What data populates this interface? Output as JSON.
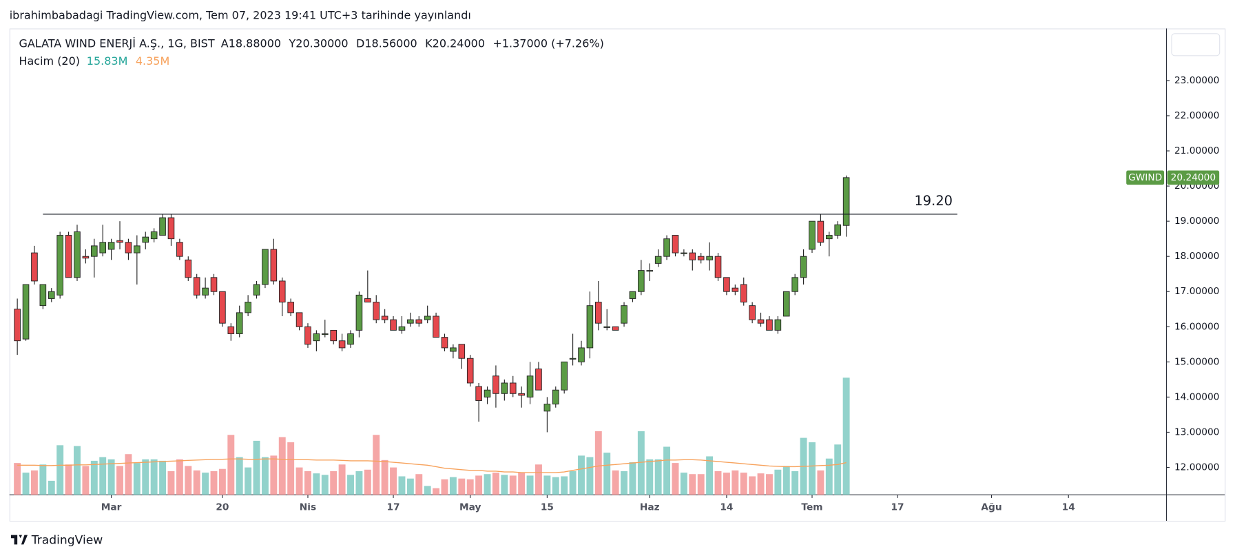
{
  "publisher": "ibrahimbabadagi TradingView.com, Tem 07, 2023 19:41 UTC+3 tarihinde yayınlandı",
  "footer": "TradingView",
  "chart_data": {
    "type": "candlestick",
    "symbol_title": "GALATA WIND ENERJİ A.Ş., 1G, BIST",
    "ohlc_legend": [
      {
        "label": "A",
        "value": "18.88000"
      },
      {
        "label": "Y",
        "value": "20.30000"
      },
      {
        "label": "D",
        "value": "18.56000"
      },
      {
        "label": "K",
        "value": "20.24000"
      }
    ],
    "change": "+1.37000 (+7.26%)",
    "volume_legend": {
      "label": "Hacim (20)",
      "volume": "15.83M",
      "ma": "4.35M"
    },
    "last_price_tag": {
      "symbol": "GWIND",
      "value": "20.24000"
    },
    "annotation": {
      "label": "19.20",
      "value": 19.2,
      "from": 3,
      "to": 110
    },
    "up_color": "#5b9b45",
    "down_color": "#e5484d",
    "volume_up_color": "#92d2cb",
    "volume_down_color": "#f5a6a6",
    "volume_ma_color": "#f7a25c",
    "open": [
      16.5,
      15.65,
      18.1,
      16.6,
      16.8,
      16.9,
      18.6,
      17.4,
      18.0,
      18.0,
      18.1,
      18.2,
      18.45,
      18.4,
      18.1,
      18.4,
      18.5,
      18.6,
      19.1,
      18.4,
      17.9,
      17.4,
      16.9,
      17.4,
      17.0,
      16.0,
      15.8,
      16.4,
      16.9,
      17.2,
      18.2,
      17.3,
      16.7,
      16.4,
      16.0,
      15.6,
      15.8,
      15.9,
      15.6,
      15.5,
      15.9,
      16.8,
      16.7,
      16.3,
      16.2,
      15.9,
      16.1,
      16.2,
      16.2,
      16.3,
      15.7,
      15.3,
      15.5,
      15.1,
      14.3,
      14.0,
      14.6,
      14.1,
      14.4,
      14.1,
      14.0,
      14.8,
      13.6,
      13.8,
      14.2,
      15.1,
      15.0,
      15.4,
      16.7,
      16.0,
      16.0,
      16.1,
      16.8,
      17.0,
      17.6,
      17.8,
      18.0,
      18.6,
      18.1,
      18.1,
      18.0,
      17.9,
      18.0,
      17.4,
      17.1,
      17.2,
      16.6,
      16.2,
      16.2,
      15.9,
      16.3,
      17.0,
      17.4,
      18.2,
      19.0,
      18.5,
      18.6,
      18.88
    ],
    "high": [
      16.8,
      17.2,
      18.3,
      17.2,
      17.1,
      18.7,
      18.7,
      18.9,
      18.2,
      18.5,
      18.9,
      18.5,
      19.0,
      18.5,
      18.6,
      18.7,
      18.8,
      19.2,
      19.2,
      18.5,
      18.0,
      17.5,
      17.4,
      17.5,
      17.0,
      16.1,
      16.6,
      16.9,
      17.3,
      18.2,
      18.5,
      17.4,
      16.8,
      16.4,
      16.1,
      15.9,
      16.2,
      15.9,
      15.8,
      15.9,
      17.0,
      17.6,
      16.9,
      16.5,
      16.3,
      16.3,
      16.4,
      16.3,
      16.6,
      16.4,
      15.8,
      15.5,
      15.5,
      15.2,
      14.4,
      14.3,
      14.9,
      14.5,
      14.6,
      14.3,
      15.0,
      15.0,
      14.0,
      14.3,
      15.0,
      15.8,
      15.6,
      17.0,
      17.3,
      16.5,
      16.0,
      16.7,
      17.0,
      17.9,
      17.8,
      18.2,
      18.6,
      18.6,
      18.2,
      18.2,
      18.1,
      18.4,
      18.1,
      17.4,
      17.2,
      17.4,
      16.7,
      16.4,
      16.3,
      16.3,
      17.0,
      17.5,
      18.2,
      19.0,
      19.2,
      18.7,
      19.0,
      20.3
    ],
    "low": [
      15.2,
      15.6,
      17.2,
      16.5,
      16.7,
      16.8,
      17.4,
      17.3,
      17.8,
      17.4,
      18.0,
      17.9,
      18.2,
      17.9,
      17.2,
      18.2,
      18.4,
      18.6,
      18.3,
      17.9,
      17.3,
      16.8,
      16.8,
      16.9,
      16.0,
      15.6,
      15.7,
      16.3,
      16.8,
      17.1,
      17.2,
      16.3,
      16.3,
      15.9,
      15.4,
      15.3,
      15.7,
      15.5,
      15.3,
      15.4,
      15.7,
      16.7,
      16.1,
      16.1,
      15.9,
      15.8,
      16.0,
      16.0,
      16.1,
      15.7,
      15.3,
      15.1,
      14.8,
      14.3,
      13.3,
      13.8,
      13.7,
      13.9,
      14.0,
      13.7,
      13.8,
      14.2,
      13.0,
      13.7,
      14.1,
      14.9,
      14.9,
      15.1,
      15.9,
      15.9,
      15.9,
      16.0,
      16.7,
      16.9,
      17.3,
      17.7,
      17.9,
      18.0,
      18.0,
      17.6,
      17.8,
      17.6,
      17.3,
      16.9,
      16.9,
      16.6,
      16.1,
      16.0,
      15.9,
      15.8,
      16.3,
      16.9,
      17.2,
      18.1,
      18.3,
      18.0,
      18.5,
      18.56
    ],
    "close": [
      15.6,
      17.2,
      17.3,
      17.2,
      17.0,
      18.6,
      17.4,
      18.7,
      17.95,
      18.3,
      18.4,
      18.4,
      18.4,
      18.1,
      18.3,
      18.55,
      18.7,
      19.1,
      18.5,
      18.0,
      17.4,
      16.9,
      17.1,
      17.0,
      16.1,
      15.8,
      16.4,
      16.7,
      17.2,
      18.2,
      17.3,
      16.7,
      16.4,
      16.0,
      15.5,
      15.8,
      15.8,
      15.6,
      15.4,
      15.8,
      16.9,
      16.7,
      16.2,
      16.2,
      15.9,
      16.0,
      16.2,
      16.1,
      16.3,
      15.7,
      15.4,
      15.4,
      15.1,
      14.4,
      13.9,
      14.2,
      14.1,
      14.4,
      14.1,
      14.05,
      14.6,
      14.2,
      13.8,
      14.2,
      15.0,
      15.1,
      15.4,
      16.6,
      16.1,
      16.0,
      15.9,
      16.6,
      17.0,
      17.6,
      17.6,
      18.0,
      18.5,
      18.1,
      18.1,
      17.9,
      17.9,
      18.0,
      17.4,
      17.0,
      17.0,
      16.7,
      16.2,
      16.1,
      15.9,
      16.2,
      17.0,
      17.4,
      18.0,
      19.0,
      18.4,
      18.6,
      18.9,
      20.24
    ],
    "volume": [
      4.3,
      3.0,
      3.3,
      4.1,
      1.9,
      6.7,
      4.1,
      6.6,
      3.9,
      4.6,
      5.1,
      4.8,
      3.9,
      5.5,
      4.3,
      4.8,
      4.8,
      4.6,
      3.2,
      4.8,
      3.9,
      3.3,
      3.0,
      3.2,
      3.5,
      8.1,
      5.1,
      3.7,
      7.3,
      5.1,
      5.3,
      7.8,
      7.1,
      3.7,
      3.2,
      2.9,
      2.7,
      3.2,
      4.1,
      2.7,
      3.2,
      3.4,
      8.1,
      4.7,
      3.7,
      2.5,
      2.2,
      2.8,
      1.2,
      0.9,
      2.1,
      2.4,
      2.2,
      2.1,
      2.6,
      2.8,
      3.0,
      2.7,
      2.6,
      3.0,
      2.6,
      4.1,
      2.6,
      2.4,
      2.5,
      3.2,
      5.3,
      5.1,
      8.6,
      5.7,
      3.3,
      3.2,
      4.4,
      8.6,
      4.8,
      4.8,
      6.5,
      4.3,
      3.0,
      2.8,
      2.8,
      5.2,
      3.2,
      3.0,
      3.3,
      3.0,
      2.5,
      2.9,
      2.8,
      3.4,
      3.9,
      3.2,
      7.7,
      7.1,
      3.3,
      4.9,
      6.8,
      15.83
    ],
    "volume_ma": [
      4.0,
      4.0,
      4.0,
      3.95,
      3.95,
      4.0,
      4.0,
      4.05,
      4.05,
      4.1,
      4.15,
      4.2,
      4.25,
      4.3,
      4.35,
      4.4,
      4.45,
      4.5,
      4.55,
      4.6,
      4.65,
      4.7,
      4.75,
      4.8,
      4.8,
      4.85,
      4.85,
      4.8,
      4.8,
      4.85,
      4.85,
      4.8,
      4.8,
      4.75,
      4.75,
      4.7,
      4.7,
      4.7,
      4.65,
      4.6,
      4.6,
      4.6,
      4.55,
      4.5,
      4.4,
      4.3,
      4.2,
      4.1,
      4.0,
      3.8,
      3.6,
      3.5,
      3.4,
      3.3,
      3.3,
      3.2,
      3.2,
      3.1,
      3.1,
      3.0,
      3.0,
      3.0,
      3.0,
      3.0,
      3.1,
      3.3,
      3.5,
      3.7,
      3.9,
      4.0,
      4.1,
      4.2,
      4.3,
      4.4,
      4.5,
      4.6,
      4.7,
      4.7,
      4.75,
      4.75,
      4.7,
      4.6,
      4.5,
      4.4,
      4.3,
      4.2,
      4.1,
      4.0,
      3.9,
      3.85,
      3.8,
      3.8,
      3.85,
      3.9,
      3.95,
      4.0,
      4.1,
      4.35
    ],
    "xlim": [
      -0.92,
      134.47
    ],
    "xticks": [
      {
        "value": 11,
        "label": "Mar"
      },
      {
        "value": 24,
        "label": "20"
      },
      {
        "value": 34,
        "label": "Nis"
      },
      {
        "value": 44,
        "label": "17"
      },
      {
        "value": 53,
        "label": "May"
      },
      {
        "value": 62,
        "label": "15"
      },
      {
        "value": 74,
        "label": "Haz"
      },
      {
        "value": 83,
        "label": "14"
      },
      {
        "value": 93,
        "label": "Tem"
      },
      {
        "value": 103,
        "label": "17"
      },
      {
        "value": 114,
        "label": "Ağu"
      },
      {
        "value": 123,
        "label": "14"
      }
    ],
    "ylim": [
      11.22,
      24.48
    ],
    "yticks": [
      {
        "value": 12,
        "label": "12.00000"
      },
      {
        "value": 13,
        "label": "13.00000"
      },
      {
        "value": 14,
        "label": "14.00000"
      },
      {
        "value": 15,
        "label": "15.00000"
      },
      {
        "value": 16,
        "label": "16.00000"
      },
      {
        "value": 17,
        "label": "17.00000"
      },
      {
        "value": 18,
        "label": "18.00000"
      },
      {
        "value": 19,
        "label": "19.00000"
      },
      {
        "value": 20,
        "label": "20.00000"
      },
      {
        "value": 21,
        "label": "21.00000"
      },
      {
        "value": 22,
        "label": "22.00000"
      },
      {
        "value": 23,
        "label": "23.00000"
      }
    ],
    "volume_lim": [
      0,
      63
    ]
  }
}
